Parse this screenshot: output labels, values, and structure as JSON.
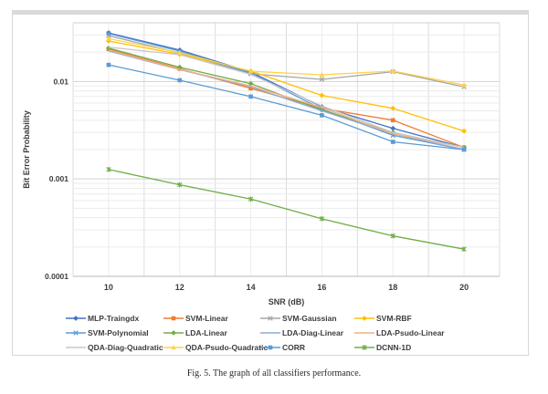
{
  "figure": {
    "caption": "Fig. 5.   The graph of all classifiers performance."
  },
  "chart_data": {
    "type": "line",
    "title": "",
    "xlabel": "SNR (dB)",
    "ylabel": "Bit Error Probability",
    "x": [
      10,
      12,
      14,
      16,
      18,
      20
    ],
    "x_tick_labels": [
      "10",
      "12",
      "14",
      "16",
      "18",
      "20"
    ],
    "y_scale": "log",
    "ylim": [
      0.0001,
      0.04
    ],
    "y_tick_labels": [
      "0.01",
      "0.001",
      "0.0001"
    ],
    "y_tick_values": [
      0.01,
      0.001,
      0.0001
    ],
    "grid": "major+minor",
    "legend_position": "bottom",
    "colors": {
      "grid_major": "#d2d2d2",
      "grid_minor": "#ebebeb",
      "grid_vertical": "#dcdcdc",
      "grid_vertical_minor": "#ececec",
      "axis_line": "#b8b8b8",
      "text": "#3d3d3d"
    },
    "series": [
      {
        "name": "MLP-Traingdx",
        "color": "#4472C4",
        "marker": "diamond",
        "values": [
          0.0315,
          0.021,
          0.0125,
          0.0055,
          0.0033,
          0.0021
        ]
      },
      {
        "name": "SVM-Linear",
        "color": "#ED7D31",
        "marker": "square",
        "values": [
          0.0215,
          0.0135,
          0.0085,
          0.0053,
          0.004,
          0.0021
        ]
      },
      {
        "name": "SVM-Gaussian",
        "color": "#A5A5A5",
        "marker": "x",
        "values": [
          0.0295,
          0.0195,
          0.012,
          0.0105,
          0.0126,
          0.0088
        ]
      },
      {
        "name": "SVM-RBF",
        "color": "#FFC000",
        "marker": "diamond",
        "values": [
          0.026,
          0.019,
          0.0128,
          0.0072,
          0.0053,
          0.0031
        ]
      },
      {
        "name": "SVM-Polynomial",
        "color": "#5B9BD5",
        "marker": "x",
        "values": [
          0.031,
          0.0205,
          0.0122,
          0.0052,
          0.0028,
          0.002
        ]
      },
      {
        "name": "LDA-Linear",
        "color": "#70AD47",
        "marker": "diamond",
        "values": [
          0.022,
          0.014,
          0.0095,
          0.0051,
          0.003,
          0.0021
        ]
      },
      {
        "name": "LDA-Diag-Linear",
        "color": "#8FAADC",
        "marker": "none",
        "values": [
          0.0205,
          0.0132,
          0.0088,
          0.005,
          0.0029,
          0.002
        ]
      },
      {
        "name": "LDA-Psudo-Linear",
        "color": "#F4B183",
        "marker": "none",
        "values": [
          0.021,
          0.0133,
          0.009,
          0.0054,
          0.0029,
          0.0021
        ]
      },
      {
        "name": "QDA-Diag-Quadratic",
        "color": "#C9C9C9",
        "marker": "none",
        "values": [
          0.0225,
          0.0188,
          0.0118,
          0.0056,
          0.003,
          0.0021
        ]
      },
      {
        "name": "QDA-Psudo-Quadratic",
        "color": "#FFD24D",
        "marker": "triangle",
        "values": [
          0.0275,
          0.0198,
          0.0127,
          0.0117,
          0.0128,
          0.0092
        ]
      },
      {
        "name": "CORR",
        "color": "#5B9BD5",
        "marker": "square",
        "values": [
          0.0148,
          0.0103,
          0.007,
          0.0045,
          0.0024,
          0.002
        ]
      },
      {
        "name": "DCNN-1D",
        "color": "#70AD47",
        "marker": "star",
        "values": [
          0.00125,
          0.00087,
          0.00062,
          0.00039,
          0.00026,
          0.00019
        ]
      }
    ]
  }
}
